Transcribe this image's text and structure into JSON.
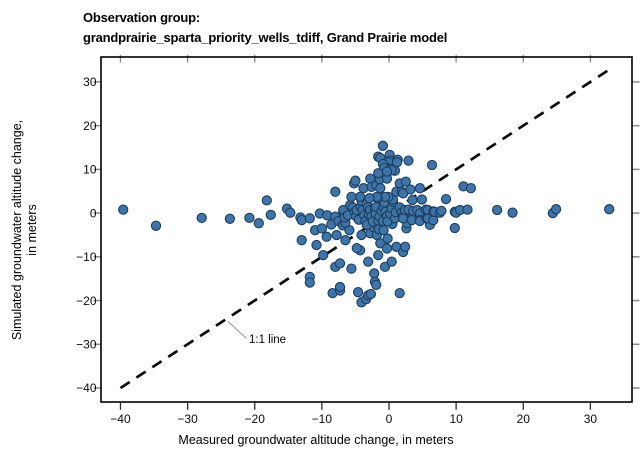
{
  "figure": {
    "title_line1": "Observation group:",
    "title_line2": "grandprairie_sparta_priority_wells_tdiff, Grand Prairie model"
  },
  "chart_data": {
    "type": "scatter",
    "title": "Observation group: grandprairie_sparta_priority_wells_tdiff, Grand Prairie model",
    "xlabel": "Measured groundwater altitude change, in meters",
    "ylabel": "Simulated groundwater altitude change, in meters",
    "ylabel_line1": "Simulated groundwater altitude change,",
    "ylabel_line2": "in meters",
    "xlim": [
      -42.9,
      36.2
    ],
    "ylim": [
      -43.2,
      35.7
    ],
    "x_ticks": [
      -40,
      -30,
      -20,
      -10,
      0,
      10,
      20,
      30
    ],
    "y_ticks": [
      -40,
      -30,
      -20,
      -10,
      0,
      10,
      20,
      30
    ],
    "grid": false,
    "legend": "none",
    "annotation": {
      "label": "1:1 line"
    },
    "one_to_one_line": {
      "x1": -40,
      "y1": -40,
      "x2": 33,
      "y2": 33,
      "style": "dashed",
      "color": "#0d0d0d"
    },
    "marker": {
      "shape": "circle",
      "fill": "#3e74a8",
      "stroke": "#1d3e5f",
      "radius_px": 4.6
    },
    "points": [
      [
        -39.6,
        0.8
      ],
      [
        -34.7,
        -2.9
      ],
      [
        -27.9,
        -1.1
      ],
      [
        -23.7,
        -1.3
      ],
      [
        -20.8,
        -1.1
      ],
      [
        -19.4,
        -2.3
      ],
      [
        -18.2,
        2.9
      ],
      [
        -17.6,
        -0.4
      ],
      [
        -15.2,
        1.0
      ],
      [
        -14.7,
        0.1
      ],
      [
        -13.2,
        -1.0
      ],
      [
        -13.0,
        -1.6
      ],
      [
        -13.0,
        -6.2
      ],
      [
        -11.8,
        -1.2
      ],
      [
        -11.0,
        -3.9
      ],
      [
        -10.3,
        -0.1
      ],
      [
        -10.0,
        -3.5
      ],
      [
        -9.3,
        -5.4
      ],
      [
        -9.2,
        -0.5
      ],
      [
        -10.8,
        -7.3
      ],
      [
        -9.8,
        -9.6
      ],
      [
        -8.6,
        -2.6
      ],
      [
        -8.0,
        -0.8
      ],
      [
        -7.5,
        -1.8
      ],
      [
        -6.9,
        -2.8
      ],
      [
        -5.9,
        -3.9
      ],
      [
        -11.8,
        -14.6
      ],
      [
        -11.8,
        -15.9
      ],
      [
        -8.4,
        -18.3
      ],
      [
        -8.0,
        -12.3
      ],
      [
        -7.3,
        -17.7
      ],
      [
        -7.3,
        -16.9
      ],
      [
        -7.3,
        -11.5
      ],
      [
        -5.6,
        -12.7
      ],
      [
        -4.6,
        -18.1
      ],
      [
        -4.3,
        -8.5
      ],
      [
        -4.1,
        -20.4
      ],
      [
        -3.4,
        -19.7
      ],
      [
        -3.1,
        -18.8
      ],
      [
        -3.1,
        -11.1
      ],
      [
        -2.7,
        -18.5
      ],
      [
        -2.2,
        -13.8
      ],
      [
        -2.1,
        -15.7
      ],
      [
        -1.9,
        -16.4
      ],
      [
        -1.6,
        -9.6
      ],
      [
        -0.6,
        -12.3
      ],
      [
        1.6,
        -18.3
      ],
      [
        0.4,
        -11.1
      ],
      [
        -7.8,
        -5.0
      ],
      [
        -6.5,
        -6.2
      ],
      [
        -6.5,
        -2.2
      ],
      [
        -4.8,
        -8.0
      ],
      [
        -4.1,
        -5.0
      ],
      [
        -2.8,
        -4.6
      ],
      [
        -2.3,
        -3.2
      ],
      [
        -1.8,
        -5.0
      ],
      [
        -1.8,
        -2.7
      ],
      [
        -1.5,
        -3.7
      ],
      [
        -1.3,
        -6.9
      ],
      [
        -0.8,
        -3.9
      ],
      [
        -0.3,
        -8.1
      ],
      [
        -0.2,
        -5.8
      ],
      [
        0.5,
        -2.5
      ],
      [
        1.1,
        -7.7
      ],
      [
        2.1,
        -8.9
      ],
      [
        2.4,
        -7.7
      ],
      [
        2.6,
        -3.5
      ],
      [
        2.7,
        -2.3
      ],
      [
        6.1,
        -2.7
      ],
      [
        9.8,
        -3.4
      ],
      [
        -6.8,
        0.3
      ],
      [
        -6.8,
        0.7
      ],
      [
        -6.6,
        -1.0
      ],
      [
        -6.1,
        -0.5
      ],
      [
        -5.8,
        1.8
      ],
      [
        -5.4,
        1.3
      ],
      [
        -5.1,
        0.2
      ],
      [
        -4.9,
        -0.7
      ],
      [
        -4.8,
        0.7
      ],
      [
        -4.5,
        -1.5
      ],
      [
        -4.2,
        1.4
      ],
      [
        -4.1,
        2.8
      ],
      [
        -3.9,
        0.7
      ],
      [
        -3.7,
        -0.5
      ],
      [
        -3.5,
        -1.8
      ],
      [
        -3.3,
        2.1
      ],
      [
        -3.3,
        -2.7
      ],
      [
        -3.1,
        1.3
      ],
      [
        -3.0,
        -0.3
      ],
      [
        -2.8,
        0.7
      ],
      [
        -2.6,
        -0.7
      ],
      [
        -2.4,
        -1.9
      ],
      [
        -2.1,
        1.1
      ],
      [
        -2.0,
        -0.1
      ],
      [
        -1.9,
        1.4
      ],
      [
        -1.6,
        -1.7
      ],
      [
        -1.4,
        -0.8
      ],
      [
        -1.1,
        0.5
      ],
      [
        -0.9,
        -1.8
      ],
      [
        -0.8,
        1.3
      ],
      [
        -0.7,
        2.4
      ],
      [
        -0.5,
        0.3
      ],
      [
        -0.3,
        -0.7
      ],
      [
        -0.2,
        -1.9
      ],
      [
        0.2,
        -0.2
      ],
      [
        0.4,
        1.1
      ],
      [
        0.6,
        2.6
      ],
      [
        0.9,
        -1.2
      ],
      [
        1.0,
        0.2
      ],
      [
        1.6,
        1.3
      ],
      [
        1.9,
        0.1
      ],
      [
        2.1,
        -0.8
      ],
      [
        2.1,
        -1.2
      ],
      [
        2.4,
        0.7
      ],
      [
        2.9,
        0.8
      ],
      [
        3.4,
        -1.2
      ],
      [
        3.4,
        -1.6
      ],
      [
        3.6,
        0.5
      ],
      [
        4.2,
        0.7
      ],
      [
        4.6,
        -0.1
      ],
      [
        4.6,
        -1.6
      ],
      [
        4.6,
        -1.8
      ],
      [
        5.5,
        0.8
      ],
      [
        5.6,
        -1.2
      ],
      [
        5.8,
        -1.2
      ],
      [
        5.8,
        0.7
      ],
      [
        6.6,
        -1.6
      ],
      [
        6.7,
        0.3
      ],
      [
        0.6,
        3.1
      ],
      [
        -0.1,
        3.7
      ],
      [
        -0.6,
        3.7
      ],
      [
        -1.7,
        3.4
      ],
      [
        -1.8,
        3.7
      ],
      [
        -2.9,
        3.4
      ],
      [
        -4.3,
        3.7
      ],
      [
        -5.6,
        3.7
      ],
      [
        6.6,
        0.4
      ],
      [
        6.8,
        0.3
      ],
      [
        7.6,
        0.1
      ],
      [
        7.8,
        0.5
      ],
      [
        8.5,
        3.2
      ],
      [
        9.8,
        0.3
      ],
      [
        10.0,
        0.1
      ],
      [
        10.6,
        0.7
      ],
      [
        11.7,
        0.8
      ],
      [
        16.1,
        0.7
      ],
      [
        18.4,
        0.1
      ],
      [
        24.4,
        0.0
      ],
      [
        24.9,
        0.9
      ],
      [
        32.8,
        0.9
      ],
      [
        -8.0,
        4.9
      ],
      [
        -5.2,
        6.8
      ],
      [
        -5.0,
        7.4
      ],
      [
        -3.8,
        5.7
      ],
      [
        -2.8,
        7.9
      ],
      [
        -2.6,
        6.0
      ],
      [
        -1.9,
        6.4
      ],
      [
        -1.4,
        7.7
      ],
      [
        -1.3,
        5.7
      ],
      [
        -0.3,
        7.9
      ],
      [
        1.1,
        4.9
      ],
      [
        1.6,
        6.8
      ],
      [
        1.9,
        4.9
      ],
      [
        2.1,
        4.5
      ],
      [
        2.5,
        7.2
      ],
      [
        3.2,
        5.4
      ],
      [
        3.5,
        3.0
      ],
      [
        4.6,
        5.7
      ],
      [
        4.9,
        3.1
      ],
      [
        11.1,
        6.1
      ],
      [
        12.2,
        5.7
      ],
      [
        -0.9,
        15.4
      ],
      [
        -1.6,
        12.9
      ],
      [
        -1.3,
        12.6
      ],
      [
        0.1,
        13.3
      ],
      [
        0.2,
        12.0
      ],
      [
        1.3,
        12.2
      ],
      [
        2.9,
        12.0
      ],
      [
        0.0,
        11.6
      ],
      [
        1.2,
        11.6
      ],
      [
        -0.9,
        11.2
      ],
      [
        6.4,
        11.0
      ],
      [
        0.0,
        10.2
      ],
      [
        -0.7,
        10.3
      ],
      [
        0.3,
        10.1
      ],
      [
        0.9,
        9.7
      ],
      [
        0.4,
        9.8
      ],
      [
        -1.6,
        9.1
      ],
      [
        -0.3,
        9.5
      ]
    ]
  }
}
